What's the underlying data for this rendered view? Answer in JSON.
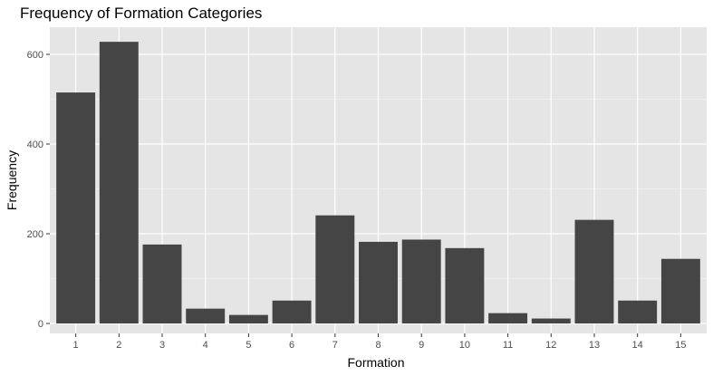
{
  "chart_data": {
    "type": "bar",
    "title": "Frequency of Formation Categories",
    "xlabel": "Formation",
    "ylabel": "Frequency",
    "categories": [
      "1",
      "2",
      "3",
      "4",
      "5",
      "6",
      "7",
      "8",
      "9",
      "10",
      "11",
      "12",
      "13",
      "14",
      "15"
    ],
    "values": [
      515,
      628,
      176,
      33,
      19,
      51,
      241,
      182,
      187,
      168,
      23,
      11,
      231,
      51,
      144
    ],
    "ylim": [
      0,
      660
    ],
    "yticks": [
      0,
      200,
      400,
      600
    ],
    "grid": true,
    "colors": {
      "panel": "#e5e5e5",
      "grid_major": "#ffffff",
      "bar": "#454545",
      "tick": "#4d4d4d"
    }
  }
}
